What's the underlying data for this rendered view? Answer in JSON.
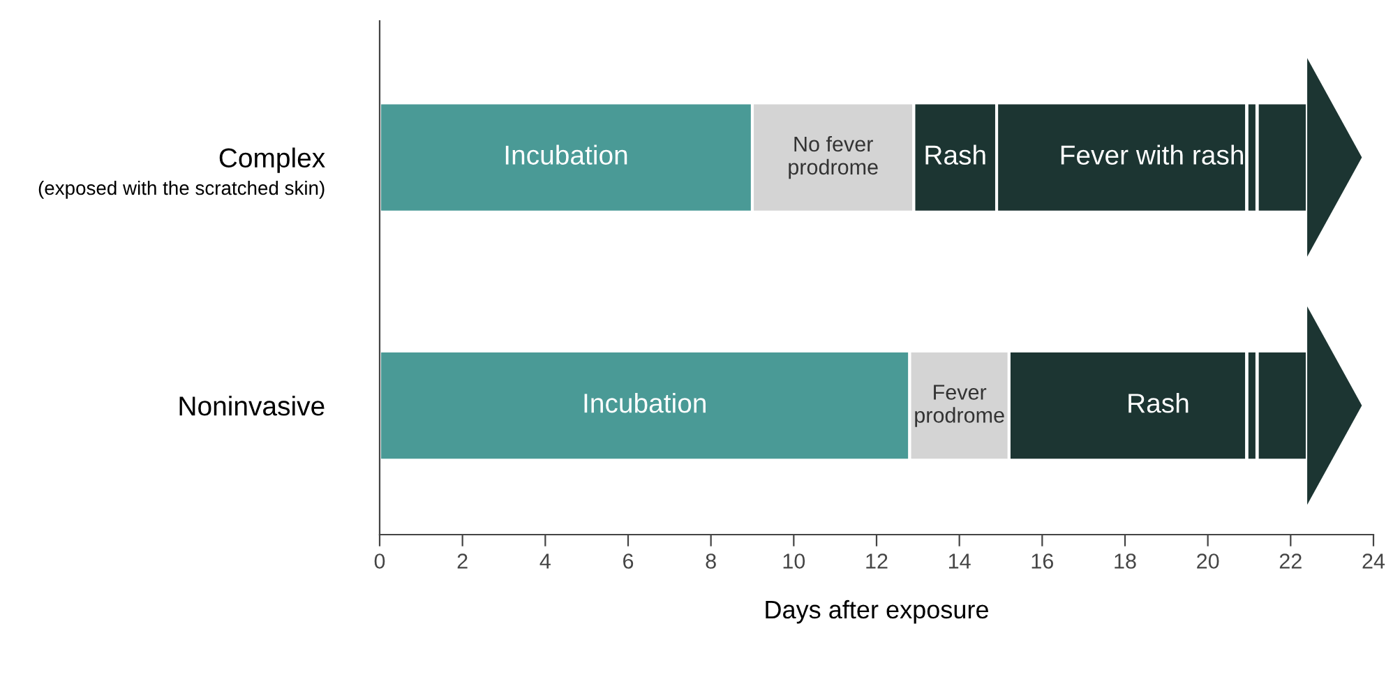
{
  "chart_data": {
    "type": "bar",
    "orientation": "horizontal",
    "categories": [
      "Complex",
      "Noninvasive"
    ],
    "xlabel": "Days after exposure",
    "annotations": [
      "(exposed with the scratched skin)"
    ],
    "series": [
      {
        "color": "#4a9a96",
        "base": [
          0,
          0
        ],
        "values": [
          9.0,
          12.8
        ],
        "value_labels": [
          "Incubation",
          "Incubation"
        ]
      },
      {
        "color": "#d4d4d4",
        "base": [
          9.0,
          12.8
        ],
        "values": [
          3.9,
          2.4
        ],
        "value_labels": [
          "No fever\nprodrome",
          "Fever\nprodrome"
        ]
      },
      {
        "color": "#1c3532",
        "base": [
          12.9,
          15.2
        ],
        "values": [
          2.0,
          7.2
        ],
        "value_labels": [
          "Rash",
          "Rash"
        ]
      },
      {
        "color": "#1c3532",
        "base": [
          14.9,
          null
        ],
        "values": [
          7.5,
          null
        ],
        "value_labels": [
          "Fever with rash",
          null
        ]
      }
    ],
    "xlim": [
      0,
      24
    ],
    "xticks": [
      0,
      2,
      4,
      6,
      8,
      10,
      12,
      14,
      16,
      18,
      20,
      22,
      24
    ],
    "grid": false,
    "legend": false
  }
}
